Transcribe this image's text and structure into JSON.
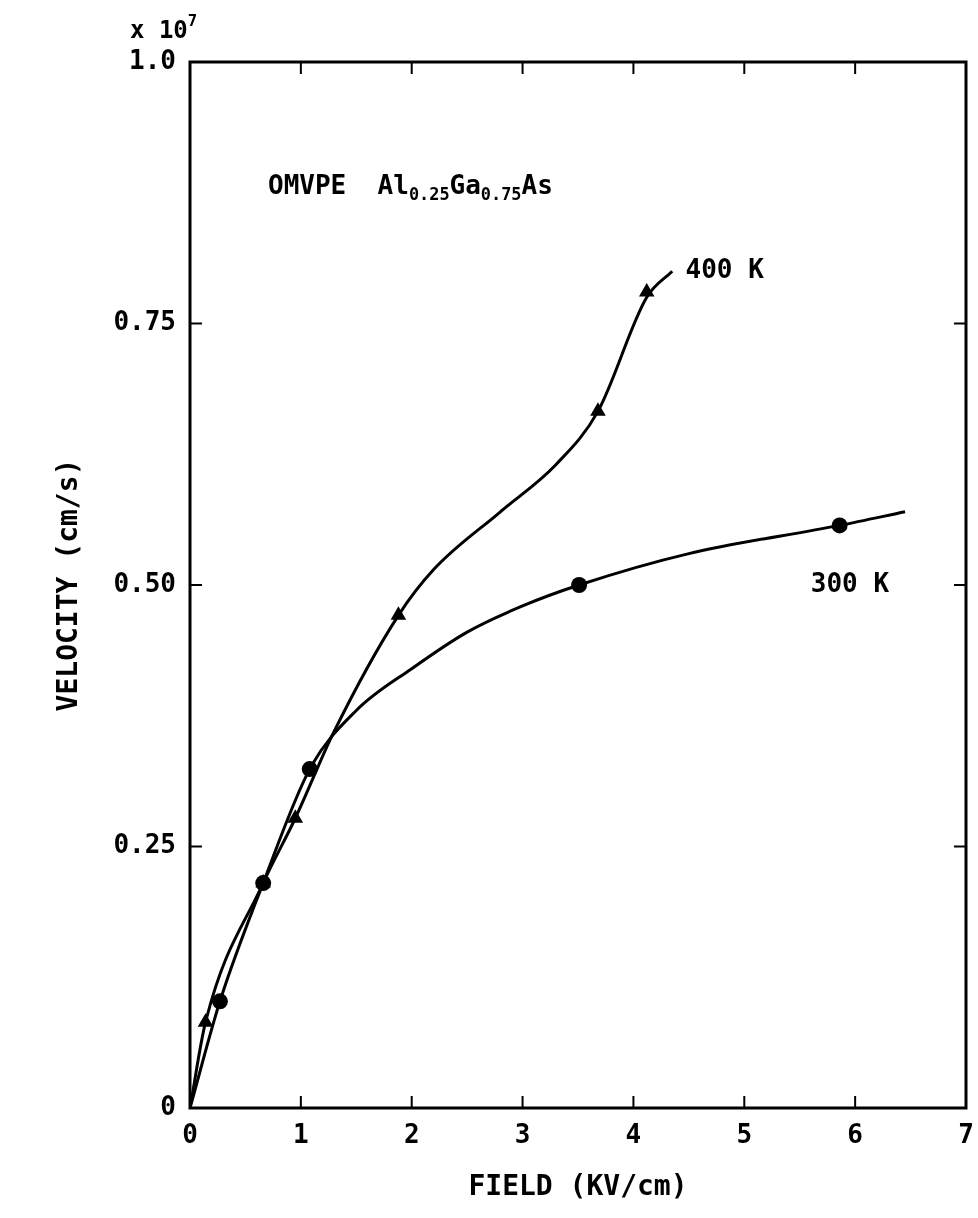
{
  "chart_data": {
    "type": "scatter",
    "xlabel": "FIELD (KV/cm)",
    "ylabel": "VELOCITY (cm/s)",
    "xlim": [
      0,
      7
    ],
    "xticks": [
      0,
      1,
      2,
      3,
      4,
      5,
      6,
      7
    ],
    "ylim": [
      0,
      1
    ],
    "yticks": [
      0,
      {
        "value": 0.25,
        "label": "0.25"
      },
      {
        "value": 0.5,
        "label": "0.50"
      },
      {
        "value": 0.75,
        "label": "0.75"
      },
      {
        "value": 1,
        "label": "1.0"
      }
    ],
    "grid": false,
    "legend": false,
    "series": [
      {
        "type": "line",
        "name": "400 K",
        "marker": "none",
        "color": "#000000",
        "x": [
          0,
          0.14,
          0.66,
          0.95,
          1.3,
          1.88,
          2.2,
          2.8,
          3.3,
          3.68,
          4.12,
          4.35
        ],
        "values": [
          0,
          0.082,
          0.215,
          0.277,
          0.36,
          0.471,
          0.515,
          0.57,
          0.615,
          0.666,
          0.775,
          0.8
        ]
      },
      {
        "type": "line",
        "name": "300 K",
        "marker": "none",
        "color": "#000000",
        "x": [
          0,
          0.27,
          0.66,
          1.08,
          1.5,
          2,
          2.5,
          3,
          3.51,
          4.5,
          5.86,
          6.45
        ],
        "values": [
          0,
          0.102,
          0.215,
          0.324,
          0.38,
          0.42,
          0.455,
          0.48,
          0.5,
          0.53,
          0.557,
          0.57
        ]
      },
      {
        "type": "scatter",
        "marker": "triangle",
        "color": "#000000",
        "x": [
          0.14,
          0.66,
          0.95,
          1.88,
          3.68,
          4.12
        ],
        "values": [
          0.082,
          0.215,
          0.277,
          0.471,
          0.666,
          0.78
        ]
      },
      {
        "type": "scatter",
        "marker": "circle",
        "color": "#000000",
        "x": [
          0.27,
          0.66,
          1.08,
          3.51,
          5.86
        ],
        "values": [
          0.102,
          0.215,
          0.324,
          0.5,
          0.557
        ]
      }
    ],
    "annotations": [
      "OMVPE  Al$_{0.25}$Ga$_{0.75}$As",
      "x 10$^{7}$"
    ]
  }
}
